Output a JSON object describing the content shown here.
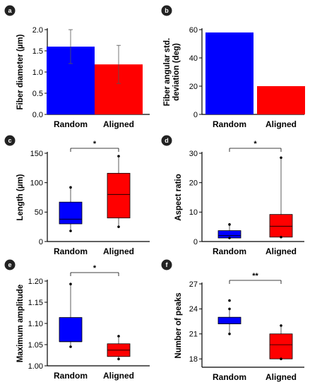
{
  "colors": {
    "random": "#0000ff",
    "aligned": "#ff0000",
    "badge": "#222222"
  },
  "chart_data": [
    {
      "panel": "a",
      "type": "bar",
      "categories": [
        "Random",
        "Aligned"
      ],
      "values": [
        1.6,
        1.18
      ],
      "errors": [
        0.4,
        0.45
      ],
      "ylabel": "Fiber diameter (µm)",
      "ylim": [
        0,
        2.0
      ],
      "yticks": [
        "0.0",
        "0.5",
        "1.0",
        "1.5",
        "2.0"
      ],
      "grid": false
    },
    {
      "panel": "b",
      "type": "bar",
      "categories": [
        "Random",
        "Aligned"
      ],
      "values": [
        58,
        20
      ],
      "ylabel": "Fiber angular std. deviation (deg)",
      "ylim": [
        0,
        60
      ],
      "yticks": [
        "0",
        "20",
        "40",
        "60"
      ],
      "grid": false
    },
    {
      "panel": "c",
      "type": "box",
      "categories": [
        "Random",
        "Aligned"
      ],
      "boxes": [
        {
          "whisker_low": 18,
          "q1": 30,
          "median": 38,
          "q3": 67,
          "whisker_high": 92
        },
        {
          "whisker_low": 25,
          "q1": 40,
          "median": 80,
          "q3": 116,
          "whisker_high": 145
        }
      ],
      "ylabel": "Length (µm)",
      "ylim": [
        0,
        150
      ],
      "yticks": [
        "0",
        "50",
        "100",
        "150"
      ],
      "significance": "*",
      "grid": false
    },
    {
      "panel": "d",
      "type": "box",
      "categories": [
        "Random",
        "Aligned"
      ],
      "boxes": [
        {
          "whisker_low": 1.2,
          "q1": 1.2,
          "median": 2,
          "q3": 3.7,
          "whisker_high": 5.8
        },
        {
          "whisker_low": 1.5,
          "q1": 1.5,
          "median": 5.2,
          "q3": 9.2,
          "whisker_high": 28.5
        }
      ],
      "ylabel": "Aspect ratio",
      "ylim": [
        0,
        30
      ],
      "yticks": [
        "0",
        "10",
        "20",
        "30"
      ],
      "significance": "*",
      "grid": false
    },
    {
      "panel": "e",
      "type": "box",
      "categories": [
        "Random",
        "Aligned"
      ],
      "boxes": [
        {
          "whisker_low": 1.045,
          "q1": 1.057,
          "median": 1.057,
          "q3": 1.114,
          "whisker_high": 1.193
        },
        {
          "whisker_low": 1.016,
          "q1": 1.022,
          "median": 1.037,
          "q3": 1.052,
          "whisker_high": 1.07
        }
      ],
      "ylabel": "Maximum amplitude",
      "ylim": [
        1.0,
        1.2
      ],
      "yticks": [
        "1.00",
        "1.05",
        "1.10",
        "1.15",
        "1.20"
      ],
      "significance": "*",
      "grid": false
    },
    {
      "panel": "f",
      "type": "box",
      "categories": [
        "Random",
        "Aligned"
      ],
      "boxes": [
        {
          "whisker_low": 21,
          "q1": 22.2,
          "median": 22.2,
          "q3": 23,
          "whisker_high": 24,
          "outliers": [
            25
          ]
        },
        {
          "whisker_low": 18,
          "q1": 18,
          "median": 19.7,
          "q3": 21,
          "whisker_high": 22
        }
      ],
      "ylabel": "Number of peaks",
      "ylim": [
        17,
        27
      ],
      "yticks": [
        "18",
        "21",
        "24",
        "27"
      ],
      "significance": "**",
      "grid": false
    }
  ]
}
